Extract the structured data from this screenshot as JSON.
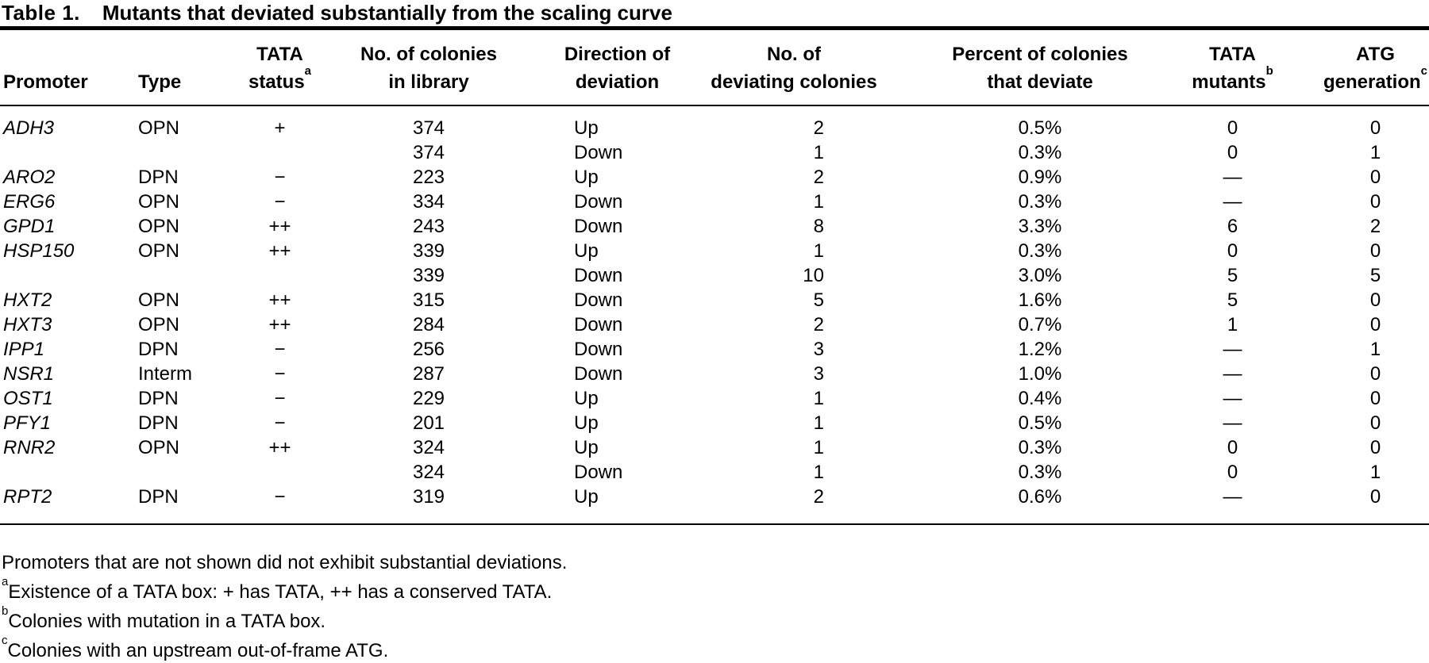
{
  "title": {
    "label": "Table 1.",
    "text": "Mutants that deviated substantially from the scaling curve"
  },
  "columns": [
    {
      "line1": "",
      "line2": "Promoter",
      "sup": ""
    },
    {
      "line1": "",
      "line2": "Type",
      "sup": ""
    },
    {
      "line1": "TATA",
      "line2": "status",
      "sup": "a"
    },
    {
      "line1": "No. of colonies",
      "line2": "in library",
      "sup": ""
    },
    {
      "line1": "Direction of",
      "line2": "deviation",
      "sup": ""
    },
    {
      "line1": "No. of",
      "line2": "deviating colonies",
      "sup": ""
    },
    {
      "line1": "Percent of colonies",
      "line2": "that deviate",
      "sup": ""
    },
    {
      "line1": "TATA",
      "line2": "mutants",
      "sup": "b"
    },
    {
      "line1": "ATG",
      "line2": "generation",
      "sup": "c"
    }
  ],
  "table": {
    "column_keys": [
      "promoter",
      "type",
      "tata-status",
      "colonies-in-library",
      "direction-of-deviation",
      "deviating-colonies",
      "percent-deviating",
      "tata-mutants",
      "atg-generation"
    ],
    "rows": [
      [
        "ADH3",
        "OPN",
        "+",
        "374",
        "Up",
        "2",
        "0.5%",
        "0",
        "0"
      ],
      [
        "",
        "",
        "",
        "374",
        "Down",
        "1",
        "0.3%",
        "0",
        "1"
      ],
      [
        "ARO2",
        "DPN",
        "−",
        "223",
        "Up",
        "2",
        "0.9%",
        "—",
        "0"
      ],
      [
        "ERG6",
        "OPN",
        "−",
        "334",
        "Down",
        "1",
        "0.3%",
        "—",
        "0"
      ],
      [
        "GPD1",
        "OPN",
        "++",
        "243",
        "Down",
        "8",
        "3.3%",
        "6",
        "2"
      ],
      [
        "HSP150",
        "OPN",
        "++",
        "339",
        "Up",
        "1",
        "0.3%",
        "0",
        "0"
      ],
      [
        "",
        "",
        "",
        "339",
        "Down",
        "10",
        "3.0%",
        "5",
        "5"
      ],
      [
        "HXT2",
        "OPN",
        "++",
        "315",
        "Down",
        "5",
        "1.6%",
        "5",
        "0"
      ],
      [
        "HXT3",
        "OPN",
        "++",
        "284",
        "Down",
        "2",
        "0.7%",
        "1",
        "0"
      ],
      [
        "IPP1",
        "DPN",
        "−",
        "256",
        "Down",
        "3",
        "1.2%",
        "—",
        "1"
      ],
      [
        "NSR1",
        "Interm",
        "−",
        "287",
        "Down",
        "3",
        "1.0%",
        "—",
        "0"
      ],
      [
        "OST1",
        "DPN",
        "−",
        "229",
        "Up",
        "1",
        "0.4%",
        "—",
        "0"
      ],
      [
        "PFY1",
        "DPN",
        "−",
        "201",
        "Up",
        "1",
        "0.5%",
        "—",
        "0"
      ],
      [
        "RNR2",
        "OPN",
        "++",
        "324",
        "Up",
        "1",
        "0.3%",
        "0",
        "0"
      ],
      [
        "",
        "",
        "",
        "324",
        "Down",
        "1",
        "0.3%",
        "0",
        "1"
      ],
      [
        "RPT2",
        "DPN",
        "−",
        "319",
        "Up",
        "2",
        "0.6%",
        "—",
        "0"
      ]
    ]
  },
  "footnotes": [
    {
      "sup": "",
      "text": "Promoters that are not shown did not exhibit substantial deviations."
    },
    {
      "sup": "a",
      "text": "Existence of a TATA box: + has TATA, ++ has a conserved TATA."
    },
    {
      "sup": "b",
      "text": "Colonies with mutation in a TATA box."
    },
    {
      "sup": "c",
      "text": "Colonies with an upstream out-of-frame ATG."
    }
  ],
  "colors": {
    "background": "#ffffff",
    "text": "#000000",
    "rule": "#000000"
  }
}
